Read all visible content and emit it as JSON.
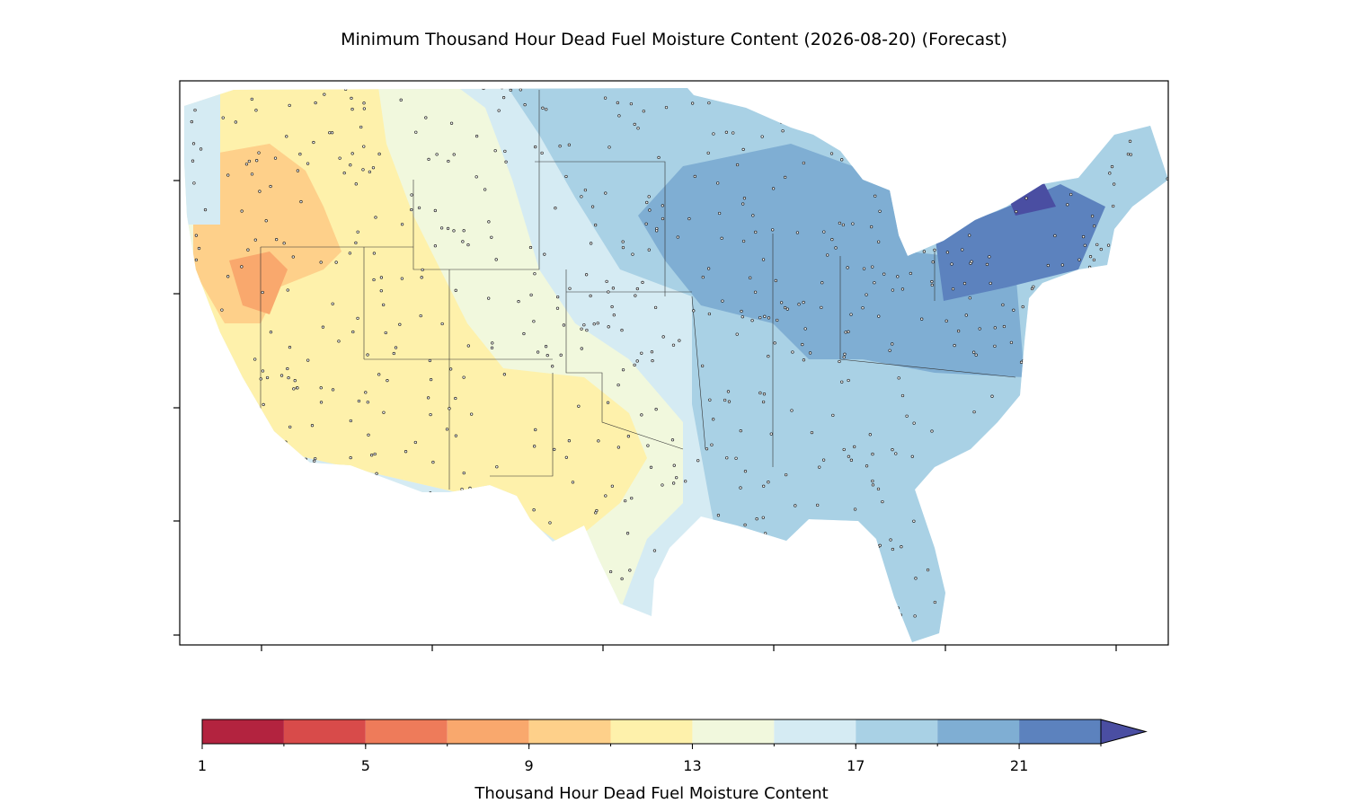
{
  "title": "Minimum Thousand Hour Dead Fuel Moisture Content (2026-08-20) (Forecast)",
  "colorbar": {
    "label": "Thousand Hour Dead Fuel Moisture Content",
    "lim": [
      1,
      23
    ],
    "levels": [
      1,
      3,
      5,
      7,
      9,
      11,
      13,
      15,
      17,
      19,
      21,
      23
    ],
    "colors": [
      "#b3233f",
      "#d84b4a",
      "#ee7b5a",
      "#f9a86d",
      "#fed08a",
      "#fef1ab",
      "#f1f8dd",
      "#d5ebf3",
      "#a9d1e5",
      "#7faed3",
      "#5c82be"
    ],
    "extend_color": "#4a4ea2",
    "ticks": [
      1,
      5,
      9,
      13,
      17,
      21
    ]
  }
}
